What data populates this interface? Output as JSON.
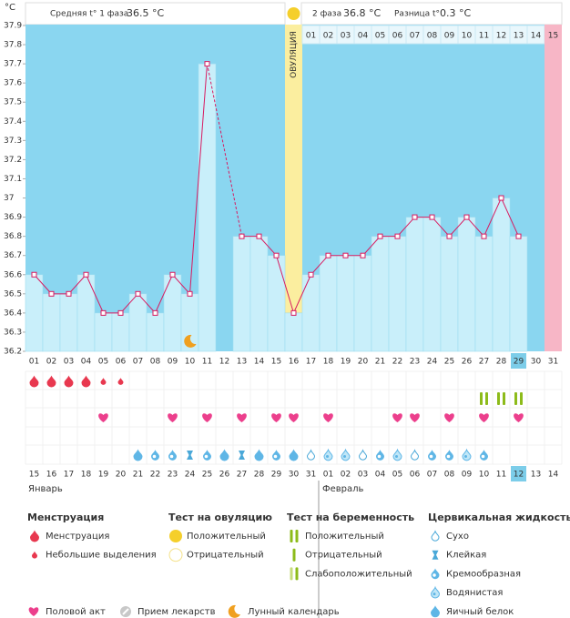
{
  "chart_data": {
    "type": "line",
    "y_unit": "°C",
    "phase1_label": "Средняя t° 1 фаза",
    "phase1_value": "36.5 °C",
    "phase2_label": "2 фаза",
    "phase2_value": "36.8 °C",
    "diff_label": "Разница t°",
    "diff_value": "0.3 °C",
    "ovulation_label": "ОВУЛЯЦИЯ",
    "ovulation_day": 16,
    "categories": [
      "01",
      "02",
      "03",
      "04",
      "05",
      "06",
      "07",
      "08",
      "09",
      "10",
      "11",
      "12",
      "13",
      "14",
      "15",
      "16",
      "17",
      "18",
      "19",
      "20",
      "21",
      "22",
      "23",
      "24",
      "25",
      "26",
      "27",
      "28",
      "29",
      "30",
      "31"
    ],
    "values": [
      36.6,
      36.5,
      36.5,
      36.6,
      36.4,
      36.4,
      36.5,
      36.4,
      36.6,
      36.5,
      37.7,
      null,
      36.8,
      36.8,
      36.7,
      36.4,
      36.6,
      36.7,
      36.7,
      36.7,
      36.8,
      36.8,
      36.9,
      36.9,
      36.8,
      36.9,
      36.8,
      37.0,
      36.8,
      null,
      null
    ],
    "line_color": "#d81b60",
    "bar_color": "#c9effa",
    "background_color": "#8ad6f0",
    "ylim": [
      36.2,
      37.9
    ],
    "yticks": [
      36.2,
      36.3,
      36.4,
      36.5,
      36.6,
      36.7,
      36.8,
      36.9,
      37,
      37.1,
      37.2,
      37.3,
      37.4,
      37.5,
      37.6,
      37.7,
      37.8,
      37.9
    ],
    "phase2_start": 17,
    "phase2_days": [
      "01",
      "02",
      "03",
      "04",
      "05",
      "06",
      "07",
      "08",
      "09",
      "10",
      "11",
      "12",
      "13",
      "14",
      "15"
    ],
    "highlight_day": 29,
    "moon_day": 10,
    "menstruation": [
      0,
      0,
      0,
      0,
      1,
      1,
      null,
      null,
      null,
      null,
      null,
      null,
      null,
      null,
      null,
      null,
      null,
      null,
      null,
      null,
      null,
      null,
      null,
      null,
      null,
      null,
      null,
      null,
      null,
      null,
      null
    ],
    "pregnancy_test": [
      null,
      null,
      null,
      null,
      null,
      null,
      null,
      null,
      null,
      null,
      null,
      null,
      null,
      null,
      null,
      null,
      null,
      null,
      null,
      null,
      null,
      null,
      null,
      null,
      null,
      null,
      0,
      0,
      0,
      null,
      null
    ],
    "intercourse": [
      false,
      false,
      false,
      false,
      true,
      false,
      false,
      false,
      true,
      false,
      true,
      false,
      true,
      false,
      true,
      true,
      false,
      true,
      false,
      false,
      false,
      true,
      true,
      false,
      true,
      false,
      true,
      false,
      true,
      false,
      false
    ],
    "cervical_fluid": [
      null,
      null,
      null,
      null,
      null,
      null,
      4,
      2,
      2,
      1,
      2,
      4,
      1,
      4,
      2,
      4,
      0,
      3,
      3,
      0,
      2,
      3,
      0,
      2,
      2,
      3,
      2,
      null,
      null,
      null,
      null
    ],
    "dates": [
      "15",
      "16",
      "17",
      "18",
      "19",
      "20",
      "21",
      "22",
      "23",
      "24",
      "25",
      "26",
      "27",
      "28",
      "29",
      "30",
      "31",
      "01",
      "02",
      "03",
      "04",
      "05",
      "06",
      "07",
      "08",
      "09",
      "10",
      "11",
      "12",
      "13",
      "14"
    ],
    "weekend": [
      false,
      false,
      false,
      true,
      true,
      false,
      false,
      false,
      false,
      false,
      true,
      true,
      false,
      false,
      false,
      false,
      false,
      true,
      true,
      false,
      false,
      false,
      false,
      false,
      true,
      true,
      false,
      false,
      false,
      false,
      false
    ],
    "months": [
      {
        "label": "Январь",
        "start": 1
      },
      {
        "label": "Февраль",
        "start": 18
      }
    ],
    "legend": [
      {
        "title": "Менструация",
        "items": [
          "Менструация",
          "Небольшие выделения"
        ]
      },
      {
        "title": "Тест на овуляцию",
        "items": [
          "Положительный",
          "Отрицательный"
        ]
      },
      {
        "title": "Тест на беременность",
        "items": [
          "Положительный",
          "Отрицательный",
          "Слабоположительный"
        ]
      },
      {
        "title": "Цервикальная жидкость",
        "items": [
          "Сухо",
          "Клейкая",
          "Кремообразная",
          "Водянистая",
          "Яичный белок"
        ]
      },
      {
        "items": [
          "Половой акт",
          "Прием лекарств",
          "Лунный календарь"
        ]
      }
    ]
  }
}
